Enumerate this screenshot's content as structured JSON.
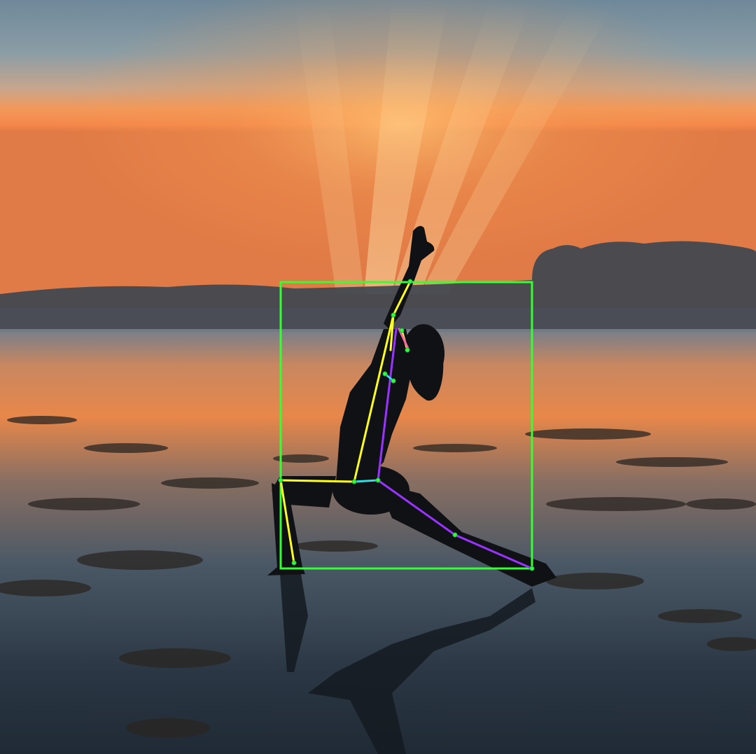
{
  "annotation": {
    "bbox_color": "#33ff33",
    "limb_colors": {
      "left_side": "#ffff22",
      "right_side": "#9a33ff",
      "torso": "#33dddd"
    },
    "keypoint_color": "#33ff33"
  }
}
